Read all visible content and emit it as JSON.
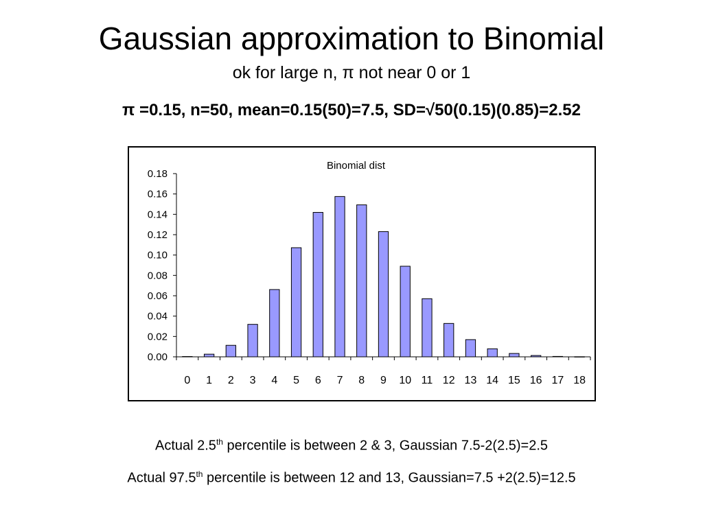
{
  "title": "Gaussian approximation to Binomial",
  "subtitle": "ok for large n,    π not near 0 or 1",
  "params": "π =0.15, n=50,   mean=0.15(50)=7.5,   SD=√50(0.15)(0.85)=2.52",
  "notes": [
    {
      "before": "Actual 2.5",
      "sup": "th",
      "after": " percentile is between 2 & 3,  Gaussian  7.5-2(2.5)=2.5"
    },
    {
      "before": "Actual 97.5",
      "sup": "th",
      "after": " percentile is between 12 and 13, Gaussian=7.5 +2(2.5)=12.5"
    }
  ],
  "colors": {
    "bar_fill": "#9999ff",
    "bar_stroke": "#000000"
  },
  "chart_data": {
    "type": "bar",
    "title": "Binomial dist",
    "xlabel": "",
    "ylabel": "",
    "categories": [
      "0",
      "1",
      "2",
      "3",
      "4",
      "5",
      "6",
      "7",
      "8",
      "9",
      "10",
      "11",
      "12",
      "13",
      "14",
      "15",
      "16",
      "17",
      "18"
    ],
    "values": [
      0.0003,
      0.0026,
      0.0113,
      0.0319,
      0.0661,
      0.1072,
      0.1419,
      0.1575,
      0.1493,
      0.123,
      0.089,
      0.0571,
      0.0328,
      0.0169,
      0.0079,
      0.0033,
      0.0013,
      0.0004,
      0.0001
    ],
    "ylim": [
      0,
      0.18
    ],
    "yticks": [
      "0.00",
      "0.02",
      "0.04",
      "0.06",
      "0.08",
      "0.10",
      "0.12",
      "0.14",
      "0.16",
      "0.18"
    ],
    "grid": false,
    "legend": "none"
  }
}
